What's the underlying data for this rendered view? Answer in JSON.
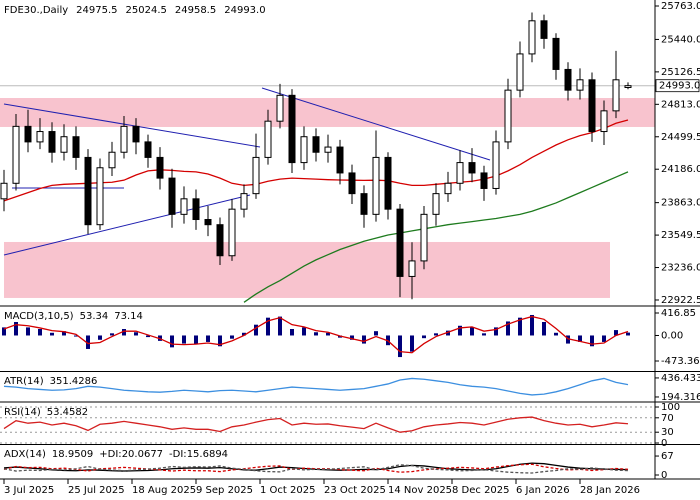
{
  "chart_data": [
    {
      "type": "candlestick",
      "title": "FDE30.,Daily",
      "ohlc_labels": [
        "24975.5",
        "25024.5",
        "24958.5",
        "24993.0"
      ],
      "color": "#000000",
      "x": [
        0,
        3,
        6,
        9,
        12,
        15,
        18,
        21,
        24,
        27,
        30,
        33,
        36,
        39,
        42,
        45,
        48,
        51,
        54,
        57,
        60,
        63,
        66,
        69,
        72,
        75,
        78,
        81,
        84,
        87,
        90,
        93,
        96,
        99,
        102,
        105,
        108,
        111,
        114,
        117,
        120,
        123,
        126,
        129,
        132,
        135,
        138,
        141,
        144,
        147,
        150,
        153,
        156
      ],
      "open": [
        23900,
        24050,
        24600,
        24450,
        24550,
        24350,
        24500,
        24300,
        23650,
        24200,
        24350,
        24600,
        24450,
        24300,
        24100,
        23750,
        23900,
        23700,
        23650,
        23350,
        23800,
        23950,
        24300,
        24650,
        24900,
        24250,
        24500,
        24350,
        24400,
        24150,
        23950,
        23750,
        24300,
        23800,
        23150,
        23300,
        23750,
        23950,
        24050,
        24250,
        24150,
        24000,
        24450,
        24950,
        25300,
        25620,
        25450,
        25150,
        24950,
        25050,
        24550,
        24750,
        24975.5
      ],
      "high": [
        24180,
        24720,
        24760,
        24680,
        24640,
        24620,
        24600,
        24380,
        24290,
        24450,
        24700,
        24680,
        24520,
        24400,
        24190,
        24020,
        23990,
        23830,
        23720,
        23900,
        24040,
        24530,
        24760,
        25010,
        24960,
        24600,
        24580,
        24520,
        24470,
        24230,
        24030,
        24560,
        24350,
        23850,
        23480,
        23830,
        24050,
        24160,
        24370,
        24390,
        24220,
        24560,
        25060,
        25420,
        25700,
        25680,
        25500,
        25220,
        25160,
        25120,
        24850,
        25330,
        25024.5
      ],
      "low": [
        23780,
        23980,
        24350,
        24380,
        24250,
        24270,
        24180,
        23560,
        23600,
        24120,
        24290,
        24330,
        24200,
        23990,
        23620,
        23660,
        23600,
        23540,
        23260,
        23300,
        23720,
        23900,
        24230,
        24580,
        24150,
        24180,
        24260,
        24250,
        24040,
        23850,
        23620,
        23680,
        23700,
        22950,
        22930,
        23220,
        23640,
        23870,
        23980,
        24060,
        23880,
        23940,
        24380,
        24880,
        25220,
        25350,
        25050,
        24850,
        24860,
        24450,
        24420,
        24680,
        24958.5
      ],
      "close": [
        24050,
        24600,
        24450,
        24550,
        24350,
        24500,
        24300,
        23650,
        24200,
        24350,
        24600,
        24450,
        24300,
        24100,
        23750,
        23900,
        23700,
        23650,
        23350,
        23800,
        23950,
        24300,
        24650,
        24900,
        24250,
        24500,
        24350,
        24400,
        24150,
        23950,
        23750,
        24300,
        23800,
        23150,
        23300,
        23750,
        23950,
        24050,
        24250,
        24150,
        24000,
        24450,
        24950,
        25300,
        25620,
        25450,
        25150,
        24950,
        25050,
        24550,
        24750,
        25050,
        24993
      ],
      "overlays": [
        {
          "color": "#d40000",
          "values": [
            23880,
            23920,
            23960,
            24000,
            24030,
            24040,
            24045,
            24050,
            24055,
            24060,
            24080,
            24130,
            24170,
            24180,
            24175,
            24165,
            24160,
            24140,
            24100,
            24050,
            24030,
            24040,
            24070,
            24090,
            24100,
            24095,
            24090,
            24085,
            24082,
            24080,
            24078,
            24080,
            24075,
            24050,
            24030,
            24030,
            24040,
            24050,
            24060,
            24070,
            24090,
            24120,
            24170,
            24230,
            24300,
            24360,
            24420,
            24470,
            24510,
            24540,
            24580,
            24630,
            24661
          ]
        },
        {
          "color": "#1e7b1e",
          "values": [
            null,
            null,
            null,
            null,
            null,
            null,
            null,
            null,
            null,
            null,
            null,
            null,
            null,
            null,
            null,
            null,
            null,
            null,
            null,
            null,
            22900,
            22980,
            23050,
            23110,
            23180,
            23250,
            23310,
            23360,
            23410,
            23450,
            23490,
            23520,
            23550,
            23570,
            23590,
            23610,
            23630,
            23650,
            23665,
            23680,
            23695,
            23710,
            23730,
            23750,
            23780,
            23820,
            23860,
            23910,
            23960,
            24010,
            24060,
            24110,
            24160
          ]
        }
      ],
      "zones": [
        {
          "color": "#f8c3ce",
          "x": [
            -1,
            163
          ],
          "y": [
            24594,
            24874
          ]
        },
        {
          "color": "#f8c3ce",
          "x": [
            0,
            151.5
          ],
          "y": [
            22942,
            23483
          ]
        }
      ],
      "trendlines": [
        {
          "color": "#2020b0",
          "x": [
            0,
            64
          ],
          "y": [
            24816,
            24401
          ]
        },
        {
          "color": "#2020b0",
          "x": [
            64.5,
            121.5
          ],
          "y": [
            24971,
            24275
          ]
        },
        {
          "color": "#2020b0",
          "x": [
            2,
            30
          ],
          "y": [
            24004,
            24004
          ]
        },
        {
          "color": "#2020b0",
          "x": [
            0,
            61.5
          ],
          "y": [
            23357,
            23937
          ]
        }
      ],
      "current_price": {
        "value": 24993,
        "label": "24993.0"
      },
      "xlim": [
        -1,
        162.75
      ],
      "ylim": [
        22874,
        25821
      ],
      "xticks": [
        {
          "value": 0,
          "label": "3 Jul 2025"
        },
        {
          "value": 16,
          "label": "25 Jul 2025"
        },
        {
          "value": 32,
          "label": "18 Aug 2025"
        },
        {
          "value": 48,
          "label": "9 Sep 2025"
        },
        {
          "value": 64,
          "label": "1 Oct 2025"
        },
        {
          "value": 80,
          "label": "23 Oct 2025"
        },
        {
          "value": 96,
          "label": "14 Nov 2025"
        },
        {
          "value": 112,
          "label": "8 Dec 2025"
        },
        {
          "value": 128,
          "label": "6 Jan 2026"
        },
        {
          "value": 144,
          "label": "28 Jan 2026"
        }
      ],
      "yticks": [
        {
          "value": 25763,
          "label": "25763.0"
        },
        {
          "value": 25440,
          "label": "25440.0"
        },
        {
          "value": 25126.5,
          "label": "25126.5"
        },
        {
          "value": 24813,
          "label": "24813.0"
        },
        {
          "value": 24499.5,
          "label": "24499.5"
        },
        {
          "value": 24186,
          "label": "24186.0"
        },
        {
          "value": 23863,
          "label": "23863.0"
        },
        {
          "value": 23549.5,
          "label": "23549.5"
        },
        {
          "value": 23236,
          "label": "23236.0"
        },
        {
          "value": 22922.5,
          "label": "22922.5"
        }
      ]
    },
    {
      "type": "line",
      "title": "MACD(3,10,5)",
      "series": [
        {
          "color": "#00007a",
          "style": "histogram",
          "values": [
            150,
            250,
            150,
            120,
            50,
            80,
            -20,
            -250,
            -80,
            40,
            120,
            60,
            -30,
            -100,
            -220,
            -150,
            -160,
            -120,
            -200,
            -60,
            50,
            200,
            330,
            350,
            120,
            150,
            60,
            50,
            -40,
            -80,
            -150,
            80,
            -180,
            -400,
            -300,
            -50,
            40,
            90,
            180,
            150,
            40,
            150,
            260,
            330,
            380,
            250,
            50,
            -150,
            -120,
            -200,
            -120,
            100,
            53.34
          ]
        },
        {
          "color": "#d40000",
          "values": [
            120,
            200,
            180,
            140,
            90,
            70,
            20,
            -150,
            -130,
            -20,
            80,
            80,
            10,
            -60,
            -160,
            -170,
            -160,
            -140,
            -170,
            -100,
            0,
            140,
            270,
            330,
            200,
            160,
            90,
            60,
            -10,
            -60,
            -110,
            -20,
            -100,
            -300,
            -320,
            -150,
            -20,
            60,
            140,
            160,
            80,
            110,
            210,
            290,
            350,
            300,
            130,
            -60,
            -110,
            -160,
            -140,
            0,
            73.14
          ]
        }
      ],
      "ylim": [
        -677,
        528
      ],
      "yticks": [
        416.85,
        {
          "value": 0,
          "label": "0.00"
        },
        -473.36
      ]
    },
    {
      "type": "line",
      "title": "ATR(14)",
      "series": [
        {
          "color": "#3c8fe0",
          "values": [
            330,
            320,
            300,
            290,
            280,
            285,
            300,
            330,
            320,
            300,
            280,
            270,
            260,
            255,
            265,
            280,
            270,
            260,
            275,
            280,
            270,
            260,
            280,
            300,
            320,
            310,
            300,
            290,
            280,
            290,
            300,
            330,
            360,
            410,
            430,
            420,
            400,
            380,
            350,
            330,
            320,
            300,
            270,
            240,
            220,
            230,
            260,
            300,
            350,
            400,
            430,
            380,
            351.4286
          ]
        }
      ],
      "ylim": [
        143,
        512
      ],
      "yticks": [
        436.4339,
        194.3161
      ]
    },
    {
      "type": "line",
      "title": "RSI(14)",
      "grid": true,
      "series": [
        {
          "color": "#d42020",
          "values": [
            40,
            62,
            55,
            58,
            50,
            55,
            48,
            35,
            52,
            55,
            60,
            55,
            50,
            45,
            38,
            42,
            38,
            38,
            32,
            45,
            50,
            58,
            65,
            68,
            50,
            55,
            52,
            53,
            48,
            44,
            40,
            55,
            42,
            30,
            34,
            45,
            50,
            53,
            57,
            55,
            50,
            58,
            66,
            70,
            72,
            62,
            55,
            50,
            52,
            45,
            50,
            56,
            53.4582
          ]
        }
      ],
      "ylim": [
        0,
        100
      ],
      "yticks": [
        100,
        70,
        30,
        0
      ]
    },
    {
      "type": "line",
      "title": "ADX(14)",
      "series": [
        {
          "color": "#000000",
          "values": [
            25,
            28,
            25,
            22,
            18,
            16,
            15,
            18,
            17,
            15,
            14,
            15,
            16,
            18,
            22,
            24,
            25,
            24,
            26,
            22,
            18,
            17,
            22,
            28,
            26,
            23,
            20,
            18,
            17,
            18,
            20,
            19,
            22,
            30,
            34,
            32,
            27,
            22,
            20,
            18,
            18,
            22,
            30,
            38,
            42,
            40,
            34,
            28,
            24,
            22,
            21,
            20,
            18.9509
          ]
        },
        {
          "name": "+DI:",
          "color": "#d40000",
          "dash": true,
          "values": [
            20,
            30,
            26,
            27,
            22,
            24,
            20,
            14,
            22,
            24,
            27,
            24,
            21,
            18,
            14,
            17,
            15,
            15,
            12,
            18,
            22,
            27,
            31,
            32,
            20,
            24,
            22,
            22,
            19,
            17,
            15,
            24,
            16,
            10,
            12,
            18,
            22,
            24,
            27,
            25,
            22,
            28,
            33,
            36,
            38,
            29,
            23,
            18,
            20,
            16,
            19,
            23,
            20.0677
          ]
        },
        {
          "name": "-DI:",
          "color": "#555555",
          "dash": true,
          "values": [
            22,
            14,
            17,
            16,
            20,
            18,
            22,
            30,
            20,
            18,
            15,
            18,
            21,
            24,
            30,
            27,
            29,
            28,
            32,
            24,
            20,
            15,
            12,
            11,
            22,
            18,
            20,
            20,
            23,
            26,
            29,
            18,
            27,
            36,
            33,
            24,
            20,
            18,
            15,
            16,
            19,
            14,
            10,
            8,
            7,
            12,
            16,
            22,
            20,
            25,
            21,
            17,
            15.6894
          ]
        }
      ],
      "ylim": [
        -10.6,
        106
      ],
      "yticks": [
        67,
        0
      ]
    }
  ]
}
